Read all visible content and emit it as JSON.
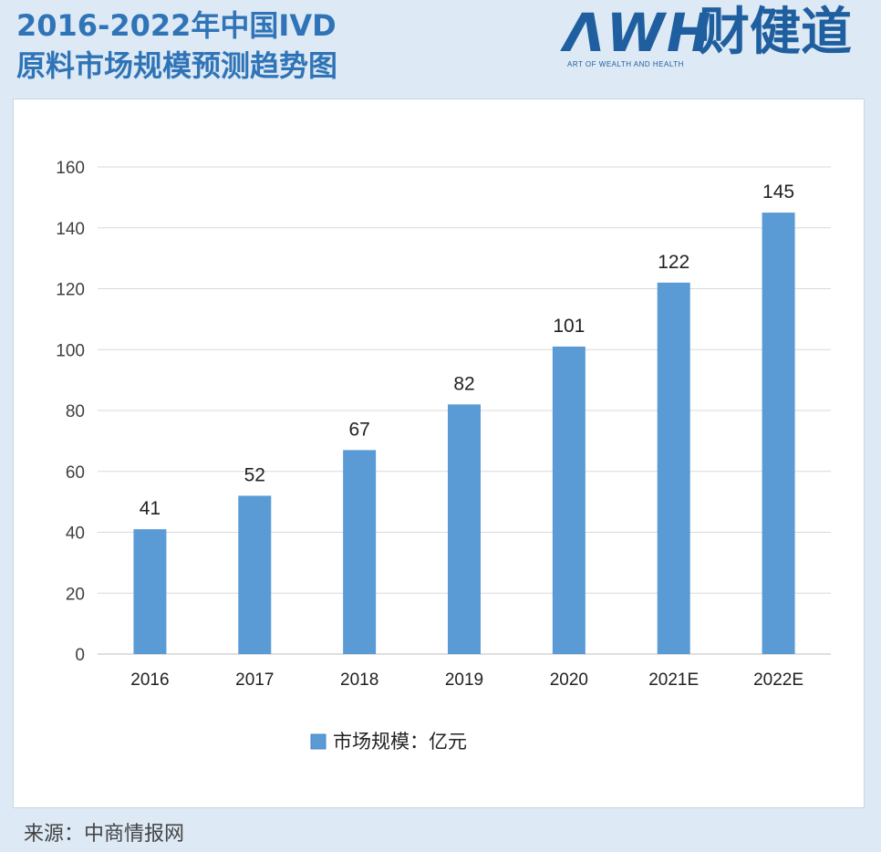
{
  "header": {
    "title_line1": "2016-2022年中国IVD",
    "title_line2": "原料市场规模预测趋势图",
    "logo_mark": "ΛWH",
    "logo_cn": "财健道",
    "logo_sub": "ART OF WEALTH AND HEALTH"
  },
  "footer": {
    "source": "来源：中商情报网"
  },
  "colors": {
    "bar": "#5b9bd5",
    "title": "#2f74b7",
    "background": "#dde9f5"
  },
  "chart_data": {
    "type": "bar",
    "categories": [
      "2016",
      "2017",
      "2018",
      "2019",
      "2020",
      "2021E",
      "2022E"
    ],
    "values": [
      41,
      52,
      67,
      82,
      101,
      122,
      145
    ],
    "series": [
      {
        "name": "市场规模：亿元",
        "values": [
          41,
          52,
          67,
          82,
          101,
          122,
          145
        ]
      }
    ],
    "yticks": [
      0,
      20,
      40,
      60,
      80,
      100,
      120,
      140,
      160
    ],
    "ylim": [
      0,
      160
    ],
    "grid": true,
    "legend": "bottom"
  }
}
